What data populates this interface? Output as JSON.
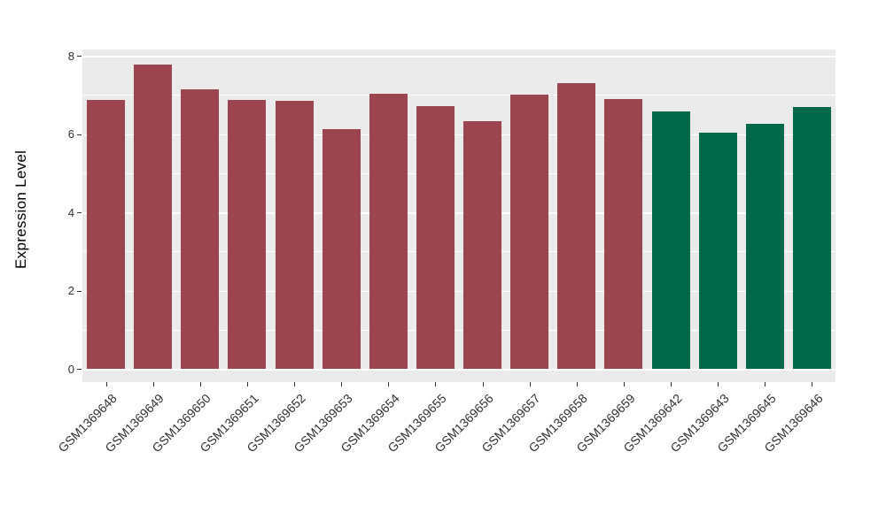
{
  "chart_data": {
    "type": "bar",
    "title": "",
    "xlabel": "",
    "ylabel": "Expression Level",
    "categories": [
      "GSM1369648",
      "GSM1369649",
      "GSM1369650",
      "GSM1369651",
      "GSM1369652",
      "GSM1369653",
      "GSM1369654",
      "GSM1369655",
      "GSM1369656",
      "GSM1369657",
      "GSM1369658",
      "GSM1369659",
      "GSM1369642",
      "GSM1369643",
      "GSM1369645",
      "GSM1369646"
    ],
    "values": [
      6.87,
      7.78,
      7.14,
      6.88,
      6.84,
      6.13,
      7.02,
      6.72,
      6.33,
      7.0,
      7.31,
      6.9,
      6.58,
      6.04,
      6.25,
      6.68
    ],
    "groups": [
      "red",
      "red",
      "red",
      "red",
      "red",
      "red",
      "red",
      "red",
      "red",
      "red",
      "red",
      "red",
      "green",
      "green",
      "green",
      "green"
    ],
    "group_colors": {
      "red": "#9B4551",
      "green": "#01684A"
    },
    "ylim": [
      0,
      8.2
    ],
    "yticks": [
      0,
      2,
      4,
      6,
      8
    ],
    "minor_gridlines": [
      1,
      3,
      5,
      7
    ],
    "grid": true,
    "legend_position": "none",
    "panel_background": "#EBEBEB",
    "gridline_color": "#FFFFFF",
    "tick_color": "#333333",
    "tick_label_color": "#303030",
    "axis_title_color": "#000000"
  }
}
